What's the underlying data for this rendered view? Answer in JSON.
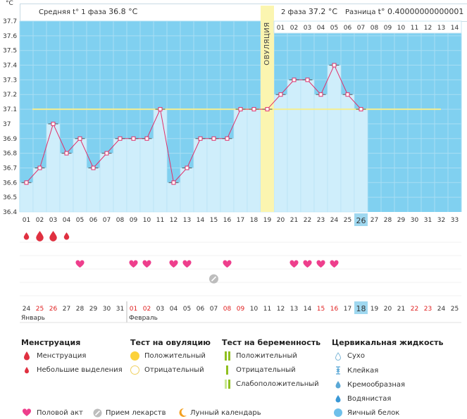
{
  "header": {
    "phase1_label": "Средняя t° 1 фаза",
    "phase1_value": "36.8 °C",
    "phase2_label": "2 фаза",
    "phase2_value": "37.2 °C",
    "diff_label": "Разница",
    "diff_value": "t° 0.40000000000001 °C"
  },
  "chart_data": {
    "type": "line",
    "title": "",
    "ylabel": "°C",
    "ylim": [
      36.4,
      37.7
    ],
    "yticks": [
      "37.7",
      "37.6",
      "37.5",
      "37.4",
      "37.3",
      "37.2",
      "37.1",
      "37",
      "36.9",
      "36.8",
      "36.7",
      "36.6",
      "36.5",
      "36.4"
    ],
    "cycle_days": [
      "01",
      "02",
      "03",
      "04",
      "05",
      "06",
      "07",
      "08",
      "09",
      "10",
      "11",
      "12",
      "13",
      "14",
      "15",
      "16",
      "17",
      "18",
      "19",
      "20",
      "21",
      "22",
      "23",
      "24",
      "25",
      "26",
      "27",
      "28",
      "29",
      "30",
      "31",
      "32",
      "33"
    ],
    "temperatures": [
      36.6,
      36.7,
      37.0,
      36.8,
      36.9,
      36.7,
      36.8,
      36.9,
      36.9,
      36.9,
      37.1,
      36.6,
      36.7,
      36.9,
      36.9,
      36.9,
      37.1,
      37.1,
      37.1,
      37.2,
      37.3,
      37.3,
      37.2,
      37.4,
      37.2,
      37.1
    ],
    "coverline": 37.1,
    "ovulation_day": 19,
    "ovulation_label": "ОВУЛЯЦИЯ",
    "current_day": 26,
    "phase2_days": [
      "01",
      "02",
      "03",
      "04",
      "05",
      "06",
      "07",
      "08",
      "09",
      "10",
      "11",
      "12",
      "13",
      "14"
    ]
  },
  "markers": {
    "menstruation_days": [
      1,
      2,
      3,
      4
    ],
    "menstruation_large_days": [
      2,
      3
    ],
    "intercourse_days": [
      5,
      9,
      10,
      12,
      13,
      16,
      21,
      22,
      23,
      24
    ],
    "medication_days": [
      15
    ]
  },
  "calendar": {
    "dates": [
      "24",
      "25",
      "26",
      "27",
      "28",
      "29",
      "30",
      "31",
      "01",
      "02",
      "03",
      "04",
      "05",
      "06",
      "07",
      "08",
      "09",
      "10",
      "11",
      "12",
      "13",
      "14",
      "15",
      "16",
      "17",
      "18",
      "19",
      "20",
      "21",
      "22",
      "23",
      "24",
      "25"
    ],
    "red_indices": [
      1,
      2,
      8,
      9,
      15,
      16,
      22,
      23,
      29,
      30
    ],
    "current_index": 25,
    "month_jan": "Январь",
    "month_feb": "Февраль"
  },
  "legend": {
    "menstruation": {
      "title": "Менструация",
      "items": [
        "Менструация",
        "Небольшие выделения"
      ]
    },
    "ovulation_test": {
      "title": "Тест на овуляцию",
      "items": [
        "Положительный",
        "Отрицательный"
      ]
    },
    "pregnancy_test": {
      "title": "Тест на беременность",
      "items": [
        "Положительный",
        "Отрицательный",
        "Слабоположительный"
      ]
    },
    "cervical": {
      "title": "Цервикальная жидкость",
      "items": [
        "Сухо",
        "Клейкая",
        "Кремообразная",
        "Водянистая",
        "Яичный белок"
      ]
    },
    "bottom": [
      "Половой акт",
      "Прием лекарств",
      "Лунный календарь"
    ]
  },
  "colors": {
    "plot_bg": "#80d0f0",
    "bar_fill": "#cfeefb",
    "line": "#e0306a",
    "coverline": "#f4ee90",
    "ovulation": "#fbf5b0",
    "heart": "#ee3e8c",
    "drop": "#e03040",
    "current_day": "#9fd8f0"
  }
}
